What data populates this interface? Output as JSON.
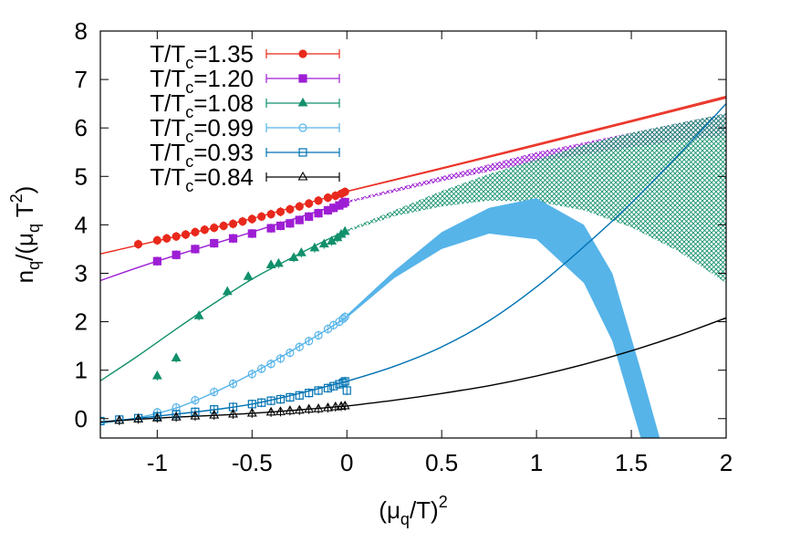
{
  "chart_data": {
    "type": "scatter",
    "title": "",
    "xlabel": {
      "base": "(μ",
      "sub": "q",
      "mid": "/T)",
      "sup": "2"
    },
    "ylabel": {
      "p1": "n",
      "s1": "q",
      "p2": "/(μ",
      "s2": "q",
      "p3": " T",
      "sup": "2",
      "p4": ")"
    },
    "xlim": [
      -1.3,
      2.0
    ],
    "ylim": [
      -0.4,
      8.0
    ],
    "xticks": [
      -1,
      -0.5,
      0,
      0.5,
      1,
      1.5,
      2
    ],
    "xtick_labels": [
      "-1",
      "-0.5",
      "0",
      "0.5",
      "1",
      "1.5",
      "2"
    ],
    "yticks": [
      0,
      1,
      2,
      3,
      4,
      5,
      6,
      7,
      8
    ],
    "ytick_labels": [
      "0",
      "1",
      "2",
      "3",
      "4",
      "5",
      "6",
      "7",
      "8"
    ],
    "legend_position": "top-left",
    "series": [
      {
        "name": "T/Tc=1.35",
        "legend_prefix": "T/T",
        "legend_sub": "c",
        "legend_value": "=1.35",
        "color": "#e8291c",
        "marker": "circle-filled",
        "points": [
          [
            -1.1,
            3.6
          ],
          [
            -1.0,
            3.68
          ],
          [
            -0.95,
            3.72
          ],
          [
            -0.9,
            3.76
          ],
          [
            -0.85,
            3.8
          ],
          [
            -0.8,
            3.85
          ],
          [
            -0.75,
            3.9
          ],
          [
            -0.7,
            3.94
          ],
          [
            -0.65,
            3.98
          ],
          [
            -0.6,
            4.02
          ],
          [
            -0.55,
            4.07
          ],
          [
            -0.5,
            4.12
          ],
          [
            -0.45,
            4.17
          ],
          [
            -0.4,
            4.22
          ],
          [
            -0.35,
            4.27
          ],
          [
            -0.3,
            4.32
          ],
          [
            -0.25,
            4.38
          ],
          [
            -0.2,
            4.44
          ],
          [
            -0.15,
            4.5
          ],
          [
            -0.1,
            4.56
          ],
          [
            -0.06,
            4.6
          ],
          [
            -0.03,
            4.64
          ],
          [
            -0.01,
            4.68
          ]
        ],
        "fit_line": [
          [
            -1.3,
            3.4
          ],
          [
            -1.0,
            3.67
          ],
          [
            -0.5,
            4.13
          ],
          [
            0.0,
            4.68
          ]
        ],
        "band": {
          "x": [
            0,
            0.5,
            1,
            1.5,
            2
          ],
          "lower": [
            4.68,
            5.15,
            5.63,
            6.12,
            6.61
          ],
          "upper": [
            4.7,
            5.18,
            5.67,
            6.16,
            6.66
          ]
        }
      },
      {
        "name": "T/Tc=1.20",
        "legend_prefix": "T/T",
        "legend_sub": "c",
        "legend_value": "=1.20",
        "color": "#9d1ed4",
        "marker": "square-filled",
        "points": [
          [
            -1.0,
            3.25
          ],
          [
            -0.9,
            3.38
          ],
          [
            -0.8,
            3.5
          ],
          [
            -0.7,
            3.62
          ],
          [
            -0.6,
            3.72
          ],
          [
            -0.5,
            3.82
          ],
          [
            -0.4,
            3.93
          ],
          [
            -0.35,
            3.98
          ],
          [
            -0.3,
            4.03
          ],
          [
            -0.25,
            4.1
          ],
          [
            -0.2,
            4.17
          ],
          [
            -0.15,
            4.24
          ],
          [
            -0.1,
            4.3
          ],
          [
            -0.07,
            4.35
          ],
          [
            -0.04,
            4.4
          ],
          [
            -0.02,
            4.44
          ],
          [
            -0.01,
            4.47
          ]
        ],
        "fit_line": [
          [
            -1.3,
            2.85
          ],
          [
            -1.0,
            3.25
          ],
          [
            -0.5,
            3.85
          ],
          [
            0.0,
            4.47
          ]
        ],
        "band": {
          "x": [
            0,
            0.5,
            1,
            1.5,
            2
          ],
          "lower": [
            4.45,
            4.9,
            5.3,
            5.6,
            5.85
          ],
          "upper": [
            4.49,
            5.0,
            5.5,
            5.9,
            6.3
          ]
        }
      },
      {
        "name": "T/Tc=1.08",
        "legend_prefix": "T/T",
        "legend_sub": "c",
        "legend_value": "=1.08",
        "color": "#12906c",
        "marker": "triangle-filled",
        "points": [
          [
            -1.0,
            0.88
          ],
          [
            -0.9,
            1.25
          ],
          [
            -0.78,
            2.12
          ],
          [
            -0.63,
            2.62
          ],
          [
            -0.52,
            2.93
          ],
          [
            -0.4,
            3.17
          ],
          [
            -0.36,
            3.2
          ],
          [
            -0.28,
            3.32
          ],
          [
            -0.24,
            3.42
          ],
          [
            -0.17,
            3.52
          ],
          [
            -0.12,
            3.6
          ],
          [
            -0.08,
            3.66
          ],
          [
            -0.05,
            3.73
          ],
          [
            -0.03,
            3.8
          ],
          [
            -0.01,
            3.86
          ]
        ],
        "fit_line": [
          [
            -1.3,
            0.78
          ],
          [
            -1.1,
            1.3
          ],
          [
            -0.9,
            1.85
          ],
          [
            -0.7,
            2.38
          ],
          [
            -0.5,
            2.88
          ],
          [
            -0.3,
            3.3
          ],
          [
            -0.1,
            3.7
          ],
          [
            0.0,
            3.88
          ]
        ],
        "band": {
          "x": [
            0,
            0.25,
            0.5,
            0.75,
            1,
            1.25,
            1.5,
            1.75,
            2
          ],
          "lower": [
            3.86,
            4.18,
            4.38,
            4.5,
            4.48,
            4.3,
            3.95,
            3.45,
            2.8
          ],
          "upper": [
            3.9,
            4.3,
            4.7,
            5.05,
            5.35,
            5.65,
            5.9,
            6.1,
            6.3
          ]
        }
      },
      {
        "name": "T/Tc=0.99",
        "legend_prefix": "T/T",
        "legend_sub": "c",
        "legend_value": "=0.99",
        "color": "#56b4e9",
        "marker": "circle-open",
        "points": [
          [
            -1.0,
            0.13
          ],
          [
            -0.9,
            0.23
          ],
          [
            -0.8,
            0.38
          ],
          [
            -0.7,
            0.55
          ],
          [
            -0.6,
            0.72
          ],
          [
            -0.5,
            0.92
          ],
          [
            -0.45,
            1.03
          ],
          [
            -0.4,
            1.13
          ],
          [
            -0.35,
            1.24
          ],
          [
            -0.3,
            1.36
          ],
          [
            -0.25,
            1.48
          ],
          [
            -0.2,
            1.6
          ],
          [
            -0.15,
            1.72
          ],
          [
            -0.1,
            1.85
          ],
          [
            -0.07,
            1.93
          ],
          [
            -0.04,
            2.0
          ],
          [
            -0.02,
            2.06
          ],
          [
            -0.01,
            2.1
          ]
        ],
        "fit_line": [
          [
            -1.3,
            -0.1
          ],
          [
            -1.1,
            0.02
          ],
          [
            -0.9,
            0.22
          ],
          [
            -0.7,
            0.54
          ],
          [
            -0.5,
            0.93
          ],
          [
            -0.3,
            1.38
          ],
          [
            -0.1,
            1.85
          ],
          [
            0.0,
            2.1
          ]
        ],
        "band": {
          "x": [
            0,
            0.25,
            0.5,
            0.75,
            1,
            1.25,
            1.4,
            1.55,
            1.65
          ],
          "lower": [
            2.08,
            2.9,
            3.5,
            3.82,
            3.7,
            2.8,
            1.6,
            -0.4,
            -0.4
          ],
          "upper": [
            2.14,
            3.05,
            3.85,
            4.35,
            4.55,
            4.0,
            3.0,
            1.0,
            -0.4
          ]
        }
      },
      {
        "name": "T/Tc=0.93",
        "legend_prefix": "T/T",
        "legend_sub": "c",
        "legend_value": "=0.93",
        "color": "#0072b2",
        "marker": "square-open",
        "points": [
          [
            -1.3,
            -0.05
          ],
          [
            -1.2,
            -0.02
          ],
          [
            -1.1,
            0.01
          ],
          [
            -1.0,
            0.05
          ],
          [
            -0.9,
            0.09
          ],
          [
            -0.8,
            0.14
          ],
          [
            -0.7,
            0.19
          ],
          [
            -0.6,
            0.24
          ],
          [
            -0.5,
            0.3
          ],
          [
            -0.45,
            0.33
          ],
          [
            -0.4,
            0.37
          ],
          [
            -0.35,
            0.4
          ],
          [
            -0.3,
            0.44
          ],
          [
            -0.25,
            0.48
          ],
          [
            -0.2,
            0.53
          ],
          [
            -0.15,
            0.58
          ],
          [
            -0.1,
            0.63
          ],
          [
            -0.07,
            0.67
          ],
          [
            -0.04,
            0.71
          ],
          [
            -0.02,
            0.74
          ],
          [
            -0.01,
            0.77
          ],
          [
            0.0,
            0.58
          ]
        ],
        "fit_line": [
          [
            -1.3,
            -0.07
          ],
          [
            -1.0,
            0.05
          ],
          [
            -0.5,
            0.3
          ],
          [
            0.0,
            0.77
          ]
        ],
        "curve": [
          [
            0.0,
            0.77
          ],
          [
            0.25,
            1.08
          ],
          [
            0.5,
            1.48
          ],
          [
            0.75,
            2.02
          ],
          [
            1.0,
            2.72
          ],
          [
            1.25,
            3.55
          ],
          [
            1.5,
            4.45
          ],
          [
            1.75,
            5.45
          ],
          [
            2.0,
            6.5
          ]
        ]
      },
      {
        "name": "T/Tc=0.84",
        "legend_prefix": "T/T",
        "legend_sub": "c",
        "legend_value": "=0.84",
        "color": "#000000",
        "marker": "triangle-open",
        "points": [
          [
            -1.2,
            -0.04
          ],
          [
            -1.1,
            -0.01
          ],
          [
            -1.0,
            0.01
          ],
          [
            -0.9,
            0.03
          ],
          [
            -0.8,
            0.05
          ],
          [
            -0.7,
            0.07
          ],
          [
            -0.6,
            0.09
          ],
          [
            -0.5,
            0.11
          ],
          [
            -0.4,
            0.13
          ],
          [
            -0.35,
            0.14
          ],
          [
            -0.3,
            0.16
          ],
          [
            -0.25,
            0.17
          ],
          [
            -0.2,
            0.19
          ],
          [
            -0.15,
            0.2
          ],
          [
            -0.1,
            0.22
          ],
          [
            -0.06,
            0.24
          ],
          [
            -0.03,
            0.25
          ],
          [
            -0.01,
            0.26
          ]
        ],
        "fit_line": [
          [
            -1.3,
            -0.07
          ],
          [
            -1.0,
            0.01
          ],
          [
            -0.5,
            0.11
          ],
          [
            0.0,
            0.26
          ]
        ],
        "curve": [
          [
            0.0,
            0.26
          ],
          [
            0.25,
            0.38
          ],
          [
            0.5,
            0.52
          ],
          [
            0.75,
            0.68
          ],
          [
            1.0,
            0.88
          ],
          [
            1.25,
            1.12
          ],
          [
            1.5,
            1.4
          ],
          [
            1.75,
            1.72
          ],
          [
            2.0,
            2.08
          ]
        ]
      }
    ]
  }
}
